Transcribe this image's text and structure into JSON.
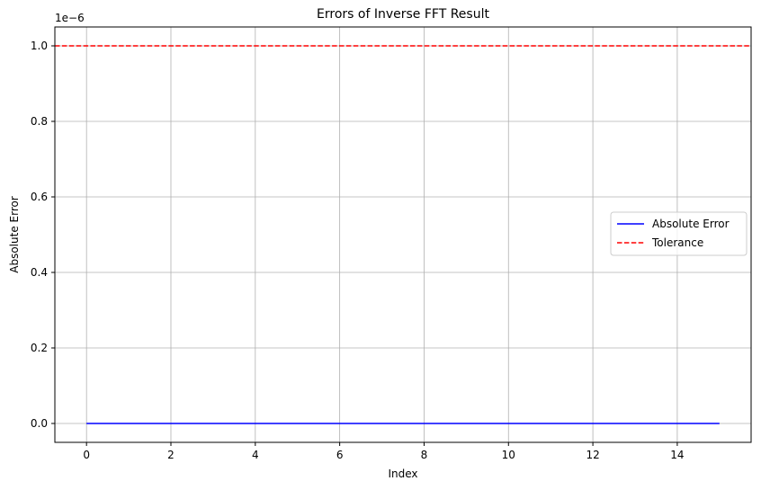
{
  "chart_data": {
    "type": "line",
    "title": "Errors of Inverse FFT Result",
    "xlabel": "Index",
    "ylabel": "Absolute Error",
    "y_offset_label": "1e−6",
    "xlim": [
      -0.75,
      15.75
    ],
    "ylim": [
      -0.05,
      1.05
    ],
    "x_ticks": [
      0,
      2,
      4,
      6,
      8,
      10,
      12,
      14
    ],
    "y_ticks": [
      0.0,
      0.2,
      0.4,
      0.6,
      0.8,
      1.0
    ],
    "y_tick_labels": [
      "0.0",
      "0.2",
      "0.4",
      "0.6",
      "0.8",
      "1.0"
    ],
    "grid": true,
    "legend_position": "center-right",
    "series": [
      {
        "name": "Absolute Error",
        "color": "#0000ff",
        "style": "solid",
        "x": [
          0,
          1,
          2,
          3,
          4,
          5,
          6,
          7,
          8,
          9,
          10,
          11,
          12,
          13,
          14,
          15
        ],
        "values": [
          0,
          0,
          0,
          0,
          0,
          0,
          0,
          0,
          0,
          0,
          0,
          0,
          0,
          0,
          0,
          0
        ]
      },
      {
        "name": "Tolerance",
        "color": "#ff0000",
        "style": "dashed",
        "hline": 1.0
      }
    ]
  }
}
